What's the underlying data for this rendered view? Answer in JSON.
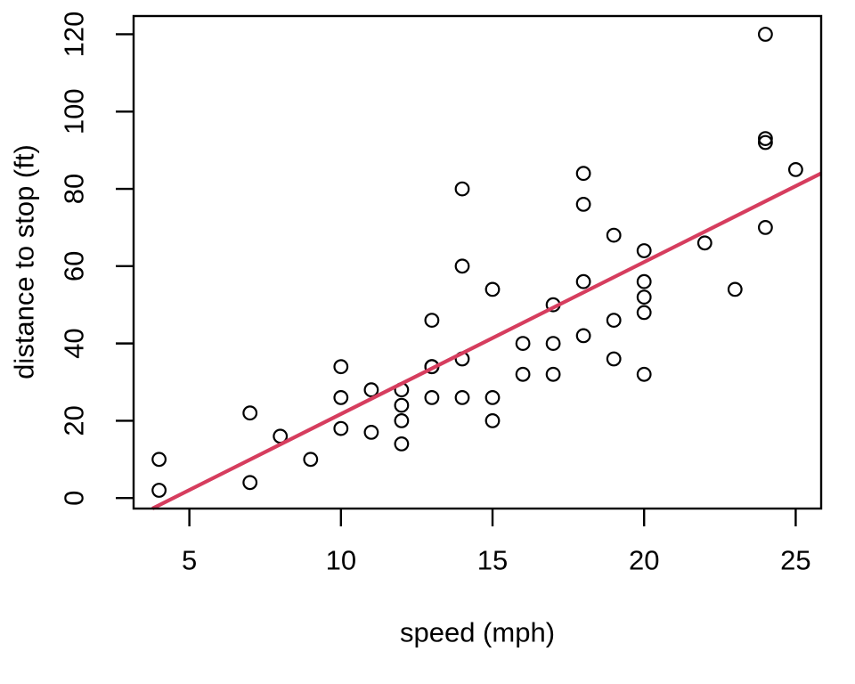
{
  "figure": {
    "background": "#FFFFFF"
  },
  "chart_data": {
    "type": "scatter",
    "title": "",
    "xlabel": "speed (mph)",
    "ylabel": "distance to stop (ft)",
    "x_ticks": [
      5,
      10,
      15,
      20,
      25
    ],
    "y_ticks": [
      0,
      20,
      40,
      60,
      80,
      100,
      120
    ],
    "xlim": [
      3.16,
      25.84
    ],
    "ylim": [
      -2.72,
      124.72
    ],
    "grid": false,
    "legend": "none",
    "points": [
      [
        4,
        2
      ],
      [
        4,
        10
      ],
      [
        7,
        4
      ],
      [
        7,
        22
      ],
      [
        8,
        16
      ],
      [
        9,
        10
      ],
      [
        10,
        18
      ],
      [
        10,
        26
      ],
      [
        10,
        34
      ],
      [
        11,
        17
      ],
      [
        11,
        28
      ],
      [
        12,
        14
      ],
      [
        12,
        20
      ],
      [
        12,
        24
      ],
      [
        12,
        28
      ],
      [
        13,
        26
      ],
      [
        13,
        34
      ],
      [
        13,
        34
      ],
      [
        13,
        46
      ],
      [
        14,
        26
      ],
      [
        14,
        36
      ],
      [
        14,
        60
      ],
      [
        14,
        80
      ],
      [
        15,
        20
      ],
      [
        15,
        26
      ],
      [
        15,
        54
      ],
      [
        16,
        32
      ],
      [
        16,
        40
      ],
      [
        17,
        32
      ],
      [
        17,
        40
      ],
      [
        17,
        50
      ],
      [
        18,
        42
      ],
      [
        18,
        56
      ],
      [
        18,
        76
      ],
      [
        18,
        84
      ],
      [
        19,
        36
      ],
      [
        19,
        46
      ],
      [
        19,
        68
      ],
      [
        20,
        32
      ],
      [
        20,
        48
      ],
      [
        20,
        52
      ],
      [
        20,
        56
      ],
      [
        20,
        64
      ],
      [
        22,
        66
      ],
      [
        23,
        54
      ],
      [
        24,
        70
      ],
      [
        24,
        92
      ],
      [
        24,
        93
      ],
      [
        24,
        120
      ],
      [
        25,
        85
      ]
    ],
    "regression_line": {
      "intercept": -17.579,
      "slope": 3.932,
      "color": "#D63D5E"
    },
    "styles": {
      "point_stroke": "#000000",
      "point_fill": "none",
      "axis_color": "#000000",
      "text_color": "#000000"
    }
  }
}
